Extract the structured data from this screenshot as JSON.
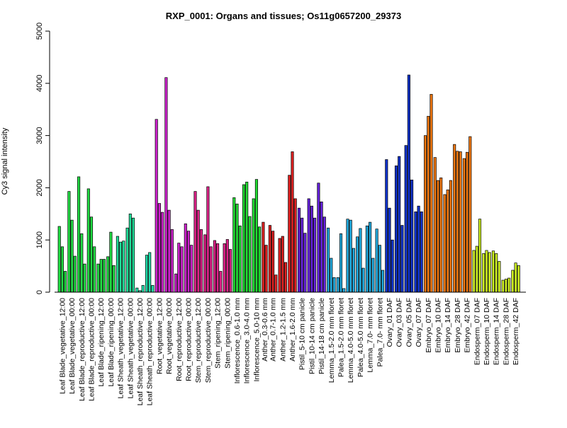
{
  "chart_data": {
    "type": "bar",
    "title": "RXP_0001: Organs and tissues; Os11g0657200_29373",
    "xlabel": "",
    "ylabel": "Cy3 signal intensity",
    "ylim": [
      0,
      5000
    ],
    "yticks": [
      0,
      1000,
      2000,
      3000,
      4000,
      5000
    ],
    "grid": false,
    "legend": "none",
    "tick_labels": [
      "Leaf Blade_vegetative_12:00",
      "Leaf Blade_vegetative_00:00",
      "Leaf Blade_reproductive_12:00",
      "Leaf Blade_reproductive_00:00",
      "Leaf Blade_ripening_12:00",
      "Leaf Blade_ripening_00:00",
      "Leaf Sheath_vegetative_12:00",
      "Leaf Sheath_vegetative_00:00",
      "Leaf Sheath_reproductive_12:00",
      "Leaf Sheath_reproductive_00:00",
      "Root_vegetative_12:00",
      "Root_vegetative_00:00",
      "Root_reproductive_12:00",
      "Root_reproductive_00:00",
      "Stem_reproductive_12:00",
      "Stem_reproductive_00:00",
      "Stem_ripening_12:00",
      "Stem_ripening_00:00",
      "Inflorescence_0.6-1.0 mm",
      "Inflorescence_3.0-4.0 mm",
      "Inflorescence_5.0-10 mm",
      "Anther_0.3-0.6 mm",
      "Anther_0.7-1.0 mm",
      "Anther_1.2-1.5 mm",
      "Anther_1.6-2.0 mm",
      "Pistil_5-10 cm panicle",
      "Pistil_10-14 cm panicle",
      "Pistil_14-18 cm panicle",
      "Lemma_1.5-2.0 mm floret",
      "Palea_1.5-2.0 mm floret",
      "Lemma_4.0-5.0 mm floret",
      "Palea_4.0-5.0 mm floret",
      "Lemma_7.0- mm floret",
      "Palea_7.0- mm floret",
      "Ovary_01 DAF",
      "Ovary_03 DAF",
      "Ovary_05 DAF",
      "Ovary_07 DAF",
      "Embryo_07 DAF",
      "Embryo_10 DAF",
      "Embryo_14 DAF",
      "Embryo_28 DAF",
      "Embryo_42 DAF",
      "Endosperm_07 DAF",
      "Endosperm_10 DAF",
      "Endosperm_14 DAF",
      "Endosperm_28 DAF",
      "Endosperm_42 DAF"
    ],
    "groups": [
      {
        "color": "#22dd44",
        "values": [
          1260,
          870,
          400
        ]
      },
      {
        "color": "#22dd44",
        "values": [
          1930,
          1380,
          690
        ]
      },
      {
        "color": "#22dd44",
        "values": [
          2210,
          1120,
          540
        ]
      },
      {
        "color": "#22dd44",
        "values": [
          1980,
          1440,
          870
        ]
      },
      {
        "color": "#22dd44",
        "values": [
          540,
          630,
          630
        ]
      },
      {
        "color": "#22dd44",
        "values": [
          680,
          1150,
          510
        ]
      },
      {
        "color": "#22dd99",
        "values": [
          1070,
          960,
          980
        ]
      },
      {
        "color": "#22dd99",
        "values": [
          1230,
          1500,
          1420
        ]
      },
      {
        "color": "#22ddaa",
        "values": [
          80,
          30,
          130
        ]
      },
      {
        "color": "#22ddaa",
        "values": [
          710,
          760,
          130
        ]
      },
      {
        "color": "#cc22cc",
        "values": [
          3310,
          1700,
          1530
        ]
      },
      {
        "color": "#cc22cc",
        "values": [
          4110,
          1570,
          1200
        ]
      },
      {
        "color": "#cc22cc",
        "values": [
          350,
          940,
          870
        ]
      },
      {
        "color": "#cc22cc",
        "values": [
          1310,
          1170,
          900
        ]
      },
      {
        "color": "#dd2288",
        "values": [
          1930,
          1570,
          1200
        ]
      },
      {
        "color": "#dd2288",
        "values": [
          1100,
          2020,
          870
        ]
      },
      {
        "color": "#dd2288",
        "values": [
          990,
          930,
          400
        ]
      },
      {
        "color": "#dd2288",
        "values": [
          930,
          1010,
          820
        ]
      },
      {
        "color": "#22dd33",
        "values": [
          1810,
          1690,
          1270
        ]
      },
      {
        "color": "#22dd33",
        "values": [
          2060,
          2110,
          1450
        ]
      },
      {
        "color": "#22dd33",
        "values": [
          1790,
          2160,
          1250
        ]
      },
      {
        "color": "#dd2222",
        "values": [
          1340,
          900
        ]
      },
      {
        "color": "#dd2222",
        "values": [
          1280,
          1170,
          330
        ]
      },
      {
        "color": "#dd2222",
        "values": [
          1030,
          1070,
          570
        ]
      },
      {
        "color": "#dd2222",
        "values": [
          2240,
          2690,
          1790
        ]
      },
      {
        "color": "#6622dd",
        "values": [
          1610,
          1420,
          1130
        ]
      },
      {
        "color": "#6622dd",
        "values": [
          1790,
          1650,
          1420
        ]
      },
      {
        "color": "#6622dd",
        "values": [
          2090,
          1730,
          1440
        ]
      },
      {
        "color": "#22aadd",
        "values": [
          1230,
          650,
          280
        ]
      },
      {
        "color": "#22aadd",
        "values": [
          280,
          1120,
          70
        ]
      },
      {
        "color": "#22aadd",
        "values": [
          1400,
          1380,
          840
        ]
      },
      {
        "color": "#22aadd",
        "values": [
          1060,
          1220,
          460
        ]
      },
      {
        "color": "#22aadd",
        "values": [
          1270,
          1340,
          650
        ]
      },
      {
        "color": "#22aadd",
        "values": [
          1210,
          900,
          420
        ]
      },
      {
        "color": "#1133cc",
        "values": [
          2540,
          1610,
          1000
        ]
      },
      {
        "color": "#1133cc",
        "values": [
          2420,
          2600,
          1280
        ]
      },
      {
        "color": "#1133cc",
        "values": [
          2810,
          4160,
          2150
        ]
      },
      {
        "color": "#1133cc",
        "values": [
          1540,
          1650,
          1540
        ]
      },
      {
        "color": "#ee7711",
        "values": [
          3000,
          3370,
          3790
        ]
      },
      {
        "color": "#ee7711",
        "values": [
          2580,
          2140,
          2190
        ]
      },
      {
        "color": "#ee7711",
        "values": [
          1870,
          1960,
          2140
        ]
      },
      {
        "color": "#ee7711",
        "values": [
          2830,
          2700,
          2690
        ]
      },
      {
        "color": "#ee7711",
        "values": [
          2560,
          2680,
          2980
        ]
      },
      {
        "color": "#ccee22",
        "values": [
          800,
          880,
          1400
        ]
      },
      {
        "color": "#ccee22",
        "values": [
          740,
          800,
          760
        ]
      },
      {
        "color": "#ccee22",
        "values": [
          790,
          740,
          590
        ]
      },
      {
        "color": "#ccee22",
        "values": [
          230,
          250,
          270
        ]
      },
      {
        "color": "#ccee22",
        "values": [
          420,
          560,
          510
        ]
      }
    ]
  }
}
